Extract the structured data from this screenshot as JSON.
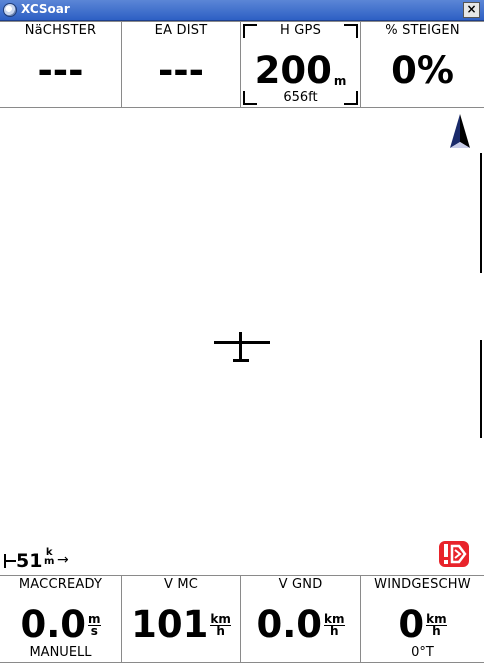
{
  "window": {
    "title": "XCSoar",
    "close_label": "×"
  },
  "top_infoboxes": [
    {
      "label": "NäCHSTER",
      "value": "---",
      "unit_top": "",
      "unit_bottom": "",
      "comment": ""
    },
    {
      "label": "EA DIST",
      "value": "---",
      "unit_top": "",
      "unit_bottom": "",
      "comment": ""
    },
    {
      "label": "H GPS",
      "value": "200",
      "unit_top": "m",
      "unit_bottom": "",
      "comment": "656ft",
      "selected": true
    },
    {
      "label": "% STEIGEN",
      "value": "0%",
      "unit_top": "",
      "unit_bottom": "",
      "comment": ""
    }
  ],
  "bottom_infoboxes": [
    {
      "label": "MACCREADY",
      "value": "0.0",
      "unit_top": "m",
      "unit_bottom": "s",
      "comment": "MANUELL"
    },
    {
      "label": "V MC",
      "value": "101",
      "unit_top": "km",
      "unit_bottom": "h",
      "comment": ""
    },
    {
      "label": "V GND",
      "value": "0.0",
      "unit_top": "km",
      "unit_bottom": "h",
      "comment": ""
    },
    {
      "label": "WINDGESCHW",
      "value": "0",
      "unit_top": "km",
      "unit_bottom": "h",
      "comment": "0°T"
    }
  ],
  "map": {
    "scale_value": "51",
    "scale_unit_top": "k",
    "scale_unit_bottom": "m",
    "north_arrow_icon": "north-arrow-icon",
    "glider_icon": "glider-icon",
    "alert_icon": "airspace-warning-icon",
    "alert_color": "#e8242b"
  }
}
